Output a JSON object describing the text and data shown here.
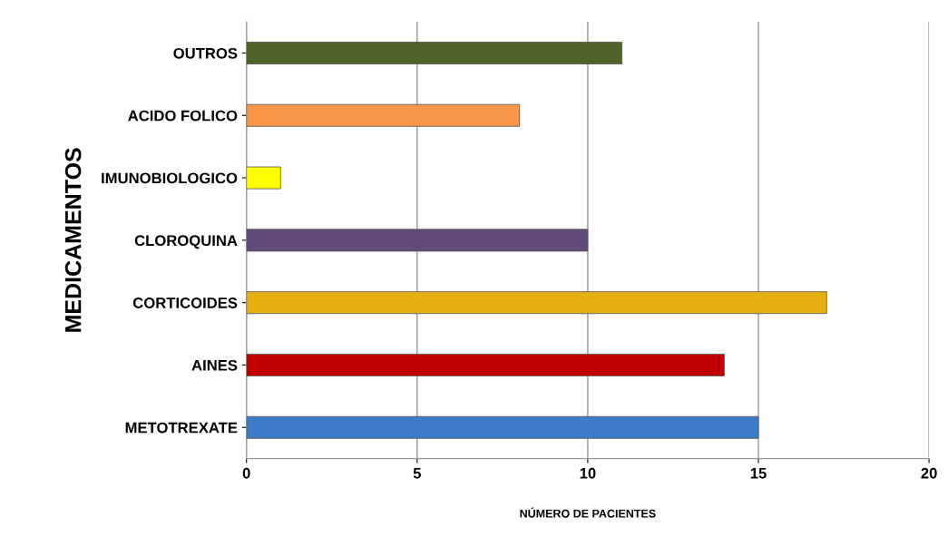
{
  "chart_data": {
    "type": "bar",
    "orientation": "horizontal",
    "categories": [
      "OUTROS",
      "ACIDO FOLICO",
      "IMUNOBIOLOGICO",
      "CLOROQUINA",
      "CORTICOIDES",
      "AINES",
      "METOTREXATE"
    ],
    "values": [
      11,
      8,
      1,
      10,
      17,
      14,
      15
    ],
    "colors": [
      "#4f6228",
      "#f79646",
      "#ffff00",
      "#604a7b",
      "#e6b012",
      "#c00000",
      "#3d7cc9"
    ],
    "xlim": [
      0,
      20
    ],
    "xticks": [
      0,
      5,
      10,
      15,
      20
    ],
    "xlabel": "NÚMERO DE PACIENTES",
    "ylabel": "MEDICAMENTOS",
    "grid": "x"
  }
}
